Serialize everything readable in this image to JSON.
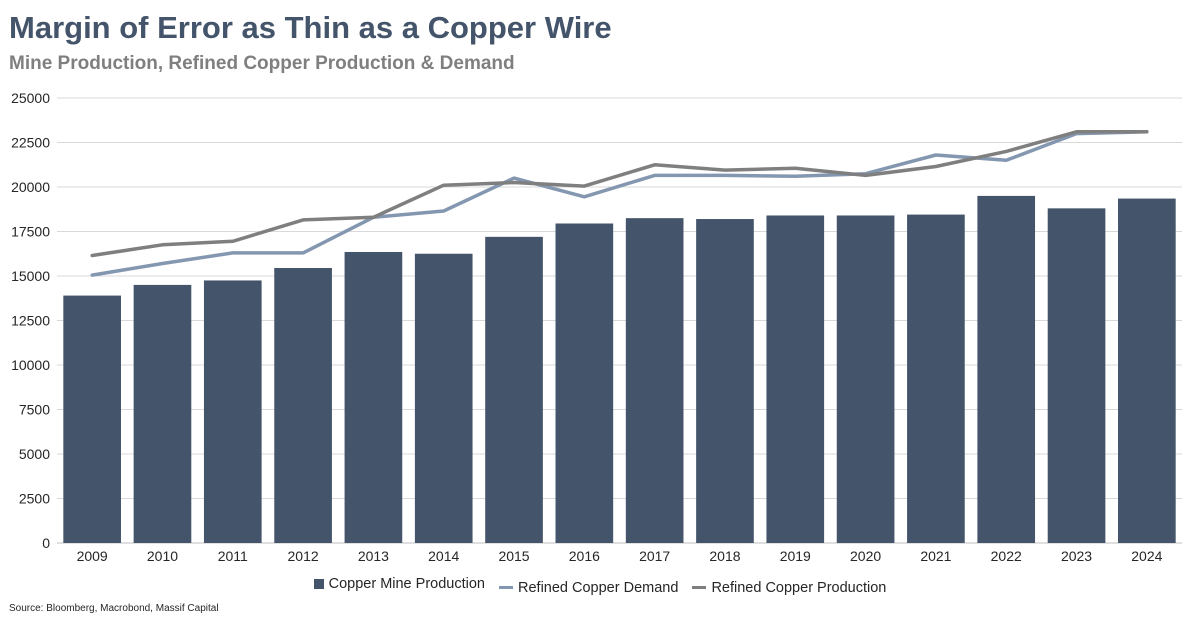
{
  "chart_data": {
    "type": "bar",
    "title": "Margin of Error as Thin as a Copper Wire",
    "subtitle": "Mine Production, Refined Copper Production & Demand",
    "categories": [
      "2009",
      "2010",
      "2011",
      "2012",
      "2013",
      "2014",
      "2015",
      "2016",
      "2017",
      "2018",
      "2019",
      "2020",
      "2021",
      "2022",
      "2023",
      "2024"
    ],
    "ylim": [
      0,
      25000
    ],
    "yticks": [
      0,
      2500,
      5000,
      7500,
      10000,
      12500,
      15000,
      17500,
      20000,
      22500,
      25000
    ],
    "series": [
      {
        "name": "Copper Mine Production",
        "type": "bar",
        "color": "#44546a",
        "values": [
          13900,
          14500,
          14750,
          15450,
          16350,
          16250,
          17200,
          17950,
          18250,
          18200,
          18400,
          18400,
          18450,
          19500,
          18800,
          19350
        ]
      },
      {
        "name": "Refined Copper Demand",
        "type": "line",
        "color": "#8497b0",
        "values": [
          15050,
          15700,
          16300,
          16300,
          18300,
          18650,
          20500,
          19450,
          20650,
          20650,
          20600,
          20750,
          21800,
          21500,
          23000,
          23100
        ]
      },
      {
        "name": "Refined Copper Production",
        "type": "line",
        "color": "#7f7f7f",
        "values": [
          16150,
          16750,
          16950,
          18150,
          18300,
          20100,
          20250,
          20050,
          21250,
          20950,
          21050,
          20650,
          21150,
          22000,
          23100,
          23100
        ]
      }
    ],
    "grid": true,
    "legend": "bottom"
  },
  "source": "Source: Bloomberg, Macrobond, Massif Capital"
}
